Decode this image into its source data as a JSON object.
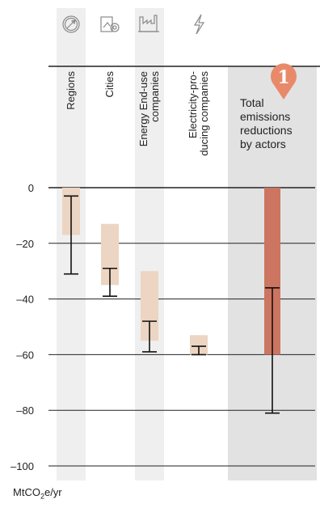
{
  "chart_data": {
    "type": "bar",
    "title": "",
    "xlabel": "",
    "ylabel": "",
    "unit_label": "MtCO2e/yr",
    "ylim": [
      -100,
      0
    ],
    "y_ticks": [
      0,
      -20,
      -40,
      -60,
      -80,
      -100
    ],
    "y_tick_labels": [
      "0",
      "–20",
      "–40",
      "–60",
      "–80",
      "–100"
    ],
    "grid": true,
    "categories": [
      {
        "key": "regions",
        "label": "Regions",
        "icon": "compass-icon",
        "range_low": -17,
        "range_high": 0,
        "whisker_low": -31,
        "whisker_high": -3,
        "marker": -3
      },
      {
        "key": "cities",
        "label": "Cities",
        "icon": "city-map-icon",
        "range_low": -35,
        "range_high": -13,
        "whisker_low": -39,
        "whisker_high": -29,
        "marker": -29
      },
      {
        "key": "energy",
        "label": "Energy End-use companies",
        "icon": "factory-icon",
        "range_low": -55,
        "range_high": -30,
        "whisker_low": -59,
        "whisker_high": -48,
        "marker": -48
      },
      {
        "key": "electricity",
        "label": "Electricity-producing companies",
        "icon": "lightning-icon",
        "range_low": -60,
        "range_high": -53,
        "whisker_low": -60,
        "whisker_high": -57,
        "marker": -57
      }
    ],
    "total": {
      "label": "Total emissions reductions by actors",
      "badge": "1",
      "range_low": -60,
      "range_high": 0,
      "whisker_low": -81,
      "whisker_high": -36,
      "marker": -36
    },
    "colors": {
      "range_fill": "#ecd5c2",
      "total_fill": "#cc7560",
      "badge": "#e88a6a",
      "total_bg": "#e2e2e2",
      "column_bg": "#efefef",
      "gridline": "#222222",
      "icon": "#8a8a8a"
    }
  }
}
